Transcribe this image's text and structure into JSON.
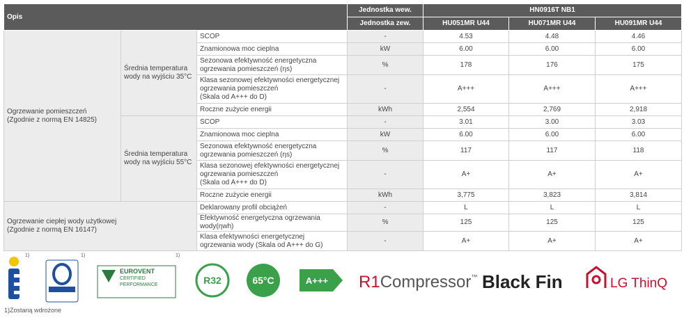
{
  "header": {
    "opis": "Opis",
    "unit_int": "Jednostka wew.",
    "unit_ext": "Jednostka zew.",
    "model_group": "HN0916T NB1",
    "models": [
      "HU051MR U44",
      "HU071MR U44",
      "HU091MR U44"
    ]
  },
  "sections": [
    {
      "label": [
        "Ogrzewanie pomieszczeń",
        "(Zgodnie z normą EN 14825)"
      ],
      "groups": [
        {
          "label": [
            "Średnia temperatura",
            "wody na wyjściu 35°C"
          ],
          "rows": [
            {
              "param": [
                "SCOP"
              ],
              "unit": "-",
              "values": [
                "4.53",
                "4.48",
                "4.46"
              ]
            },
            {
              "param": [
                "Znamionowa moc cieplna"
              ],
              "unit": "kW",
              "values": [
                "6.00",
                "6.00",
                "6.00"
              ]
            },
            {
              "param": [
                "Sezonowa efektywność energetyczna",
                "ogrzewania pomieszczeń (ηs)"
              ],
              "unit": "%",
              "values": [
                "178",
                "176",
                "175"
              ]
            },
            {
              "param": [
                "Klasa sezonowej efektywności energetycznej",
                "ogrzewania pomieszczeń",
                "(Skala od A+++ do D)"
              ],
              "unit": "-",
              "values": [
                "A+++",
                "A+++",
                "A+++"
              ]
            },
            {
              "param": [
                "Roczne zużycie energii"
              ],
              "unit": "kWh",
              "values": [
                "2,554",
                "2,769",
                "2,918"
              ]
            }
          ]
        },
        {
          "label": [
            "Średnia temperatura",
            "wody na wyjściu 55°C"
          ],
          "rows": [
            {
              "param": [
                "SCOP"
              ],
              "unit": "-",
              "values": [
                "3.01",
                "3.00",
                "3.03"
              ]
            },
            {
              "param": [
                "Znamionowa moc cieplna"
              ],
              "unit": "kW",
              "values": [
                "6.00",
                "6.00",
                "6.00"
              ]
            },
            {
              "param": [
                "Sezonowa efektywność energetyczna",
                "ogrzewania pomieszczeń (ηs)"
              ],
              "unit": "%",
              "values": [
                "117",
                "117",
                "118"
              ]
            },
            {
              "param": [
                "Klasa sezonowej efektywności energetycznej",
                "ogrzewania pomieszczeń",
                "(Skala od A+++ do D)"
              ],
              "unit": "-",
              "values": [
                "A+",
                "A+",
                "A+"
              ]
            },
            {
              "param": [
                "Roczne zużycie energii"
              ],
              "unit": "kWh",
              "values": [
                "3,775",
                "3,823",
                "3,814"
              ]
            }
          ]
        }
      ]
    },
    {
      "label": [
        "Ogrzewanie ciepłej wody użytkowej",
        "(Zgodnie z normą EN 16147)"
      ],
      "groups": [
        {
          "rows": [
            {
              "param": [
                "Deklarowany profil obciążeń"
              ],
              "unit": "-",
              "values": [
                "L",
                "L",
                "L"
              ]
            },
            {
              "param": [
                "Efektywność energetyczna ogrzewania wody(ηwh)"
              ],
              "unit": "%",
              "values": [
                "125",
                "125",
                "125"
              ]
            },
            {
              "param": [
                "Klasa efektywności energetycznej",
                "ogrzewania wody (Skala od A+++ do G)"
              ],
              "unit": "-",
              "values": [
                "A+",
                "A+",
                "A+"
              ]
            }
          ]
        }
      ]
    }
  ],
  "logos": {
    "note_marker": "1)",
    "eurovent": [
      "EUROVENT",
      "CERTIFIED",
      "PERFORMANCE"
    ],
    "r32": "R32",
    "temp": "65°C",
    "energy_class": "A+++",
    "r1": "R1",
    "compressor": "Compressor",
    "tm": "™",
    "black_fin": "Black Fin",
    "thinq": "LG ThinQ"
  },
  "footnote": "1)Zostaną wdrożone"
}
